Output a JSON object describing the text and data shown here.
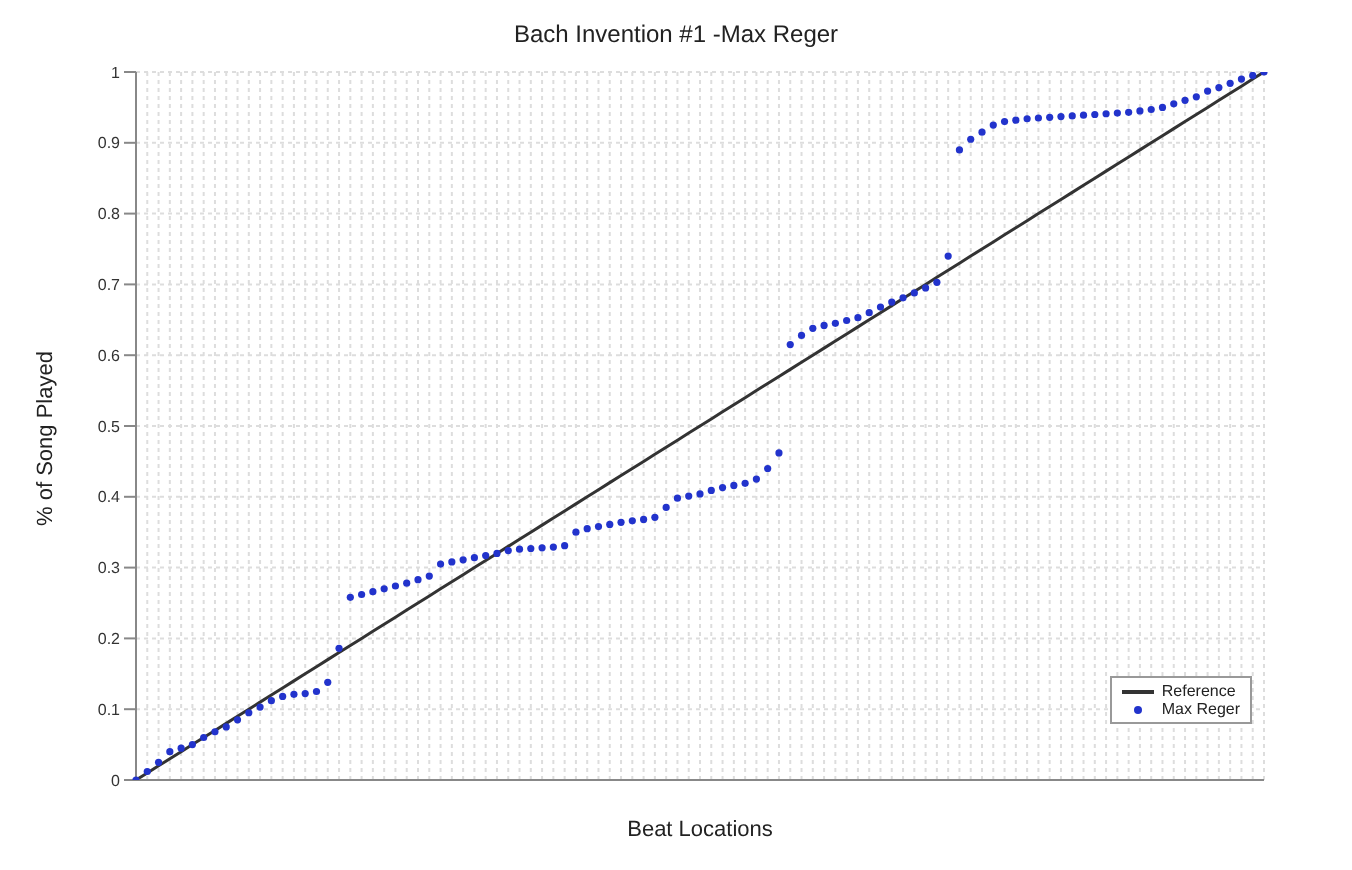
{
  "chart_data": {
    "type": "line",
    "title": "Bach Invention #1 -Max Reger",
    "xlabel": "Beat Locations",
    "ylabel": "% of Song Played",
    "categories": [
      null,
      null,
      null,
      null,
      null,
      null,
      null,
      null,
      null,
      null,
      null,
      null,
      null,
      null,
      null,
      null,
      null,
      null,
      null,
      null,
      null,
      null,
      null,
      null,
      null,
      null,
      null,
      null,
      null,
      null,
      null,
      null,
      null,
      null,
      null,
      null,
      null,
      null,
      null,
      null,
      null,
      null,
      null,
      null,
      null,
      null,
      null,
      null,
      null,
      null,
      null,
      null,
      null,
      null,
      null,
      null,
      null,
      null,
      null,
      null,
      null,
      null,
      null,
      null,
      null,
      null,
      null,
      null,
      null,
      null,
      null,
      null,
      null,
      null,
      null,
      null,
      null,
      null,
      null,
      null,
      null,
      null,
      null,
      null,
      null,
      null,
      null,
      null,
      null,
      null,
      null,
      null,
      null,
      null,
      null,
      null,
      null,
      null,
      null,
      null,
      null
    ],
    "series": [
      {
        "name": "Reference",
        "type": "line",
        "color": "#333333",
        "marker": "none",
        "values": [
          0,
          0.01,
          0.02,
          0.03,
          0.04,
          0.05,
          0.06,
          0.07,
          0.08,
          0.09,
          0.1,
          0.11,
          0.12,
          0.13,
          0.14,
          0.15,
          0.16,
          0.17,
          0.18,
          0.19,
          0.2,
          0.21,
          0.22,
          0.23,
          0.24,
          0.25,
          0.26,
          0.27,
          0.28,
          0.29,
          0.3,
          0.31,
          0.32,
          0.33,
          0.34,
          0.35,
          0.36,
          0.37,
          0.38,
          0.39,
          0.4,
          0.41,
          0.42,
          0.43,
          0.44,
          0.45,
          0.46,
          0.47,
          0.48,
          0.49,
          0.5,
          0.51,
          0.52,
          0.53,
          0.54,
          0.55,
          0.56,
          0.57,
          0.58,
          0.59,
          0.6,
          0.61,
          0.62,
          0.63,
          0.64,
          0.65,
          0.66,
          0.67,
          0.68,
          0.69,
          0.7,
          0.71,
          0.72,
          0.73,
          0.74,
          0.75,
          0.76,
          0.77,
          0.78,
          0.79,
          0.8,
          0.81,
          0.82,
          0.83,
          0.84,
          0.85,
          0.86,
          0.87,
          0.88,
          0.89,
          0.9,
          0.91,
          0.92,
          0.93,
          0.94,
          0.95,
          0.96,
          0.97,
          0.98,
          0.99,
          1
        ]
      },
      {
        "name": "Max Reger",
        "type": "scatter",
        "color": "#2233cc",
        "marker": "circle",
        "values": [
          0,
          0.012,
          0.025,
          0.04,
          0.045,
          0.05,
          0.06,
          0.068,
          0.075,
          0.085,
          0.095,
          0.103,
          0.112,
          0.118,
          0.121,
          0.122,
          0.125,
          0.138,
          0.186,
          0.258,
          0.262,
          0.266,
          0.27,
          0.274,
          0.278,
          0.283,
          0.288,
          0.305,
          0.308,
          0.311,
          0.314,
          0.317,
          0.32,
          0.324,
          0.326,
          0.327,
          0.328,
          0.329,
          0.331,
          0.35,
          0.355,
          0.358,
          0.361,
          0.364,
          0.366,
          0.368,
          0.371,
          0.385,
          0.398,
          0.401,
          0.404,
          0.409,
          0.413,
          0.416,
          0.419,
          0.425,
          0.44,
          0.462,
          0.615,
          0.628,
          0.638,
          0.642,
          0.645,
          0.649,
          0.653,
          0.66,
          0.668,
          0.675,
          0.681,
          0.688,
          0.695,
          0.703,
          0.74,
          0.89,
          0.905,
          0.915,
          0.925,
          0.93,
          0.932,
          0.934,
          0.935,
          0.936,
          0.937,
          0.938,
          0.939,
          0.94,
          0.941,
          0.942,
          0.943,
          0.945,
          0.947,
          0.95,
          0.955,
          0.96,
          0.965,
          0.973,
          0.978,
          0.984,
          0.99,
          0.995,
          1
        ]
      }
    ],
    "ylim": [
      0,
      1
    ],
    "yticks": [
      0,
      0.1,
      0.2,
      0.3,
      0.4,
      0.5,
      0.6,
      0.7,
      0.8,
      0.9,
      1
    ],
    "tick_labels": "y",
    "grid": true,
    "legend": "bottom right"
  }
}
